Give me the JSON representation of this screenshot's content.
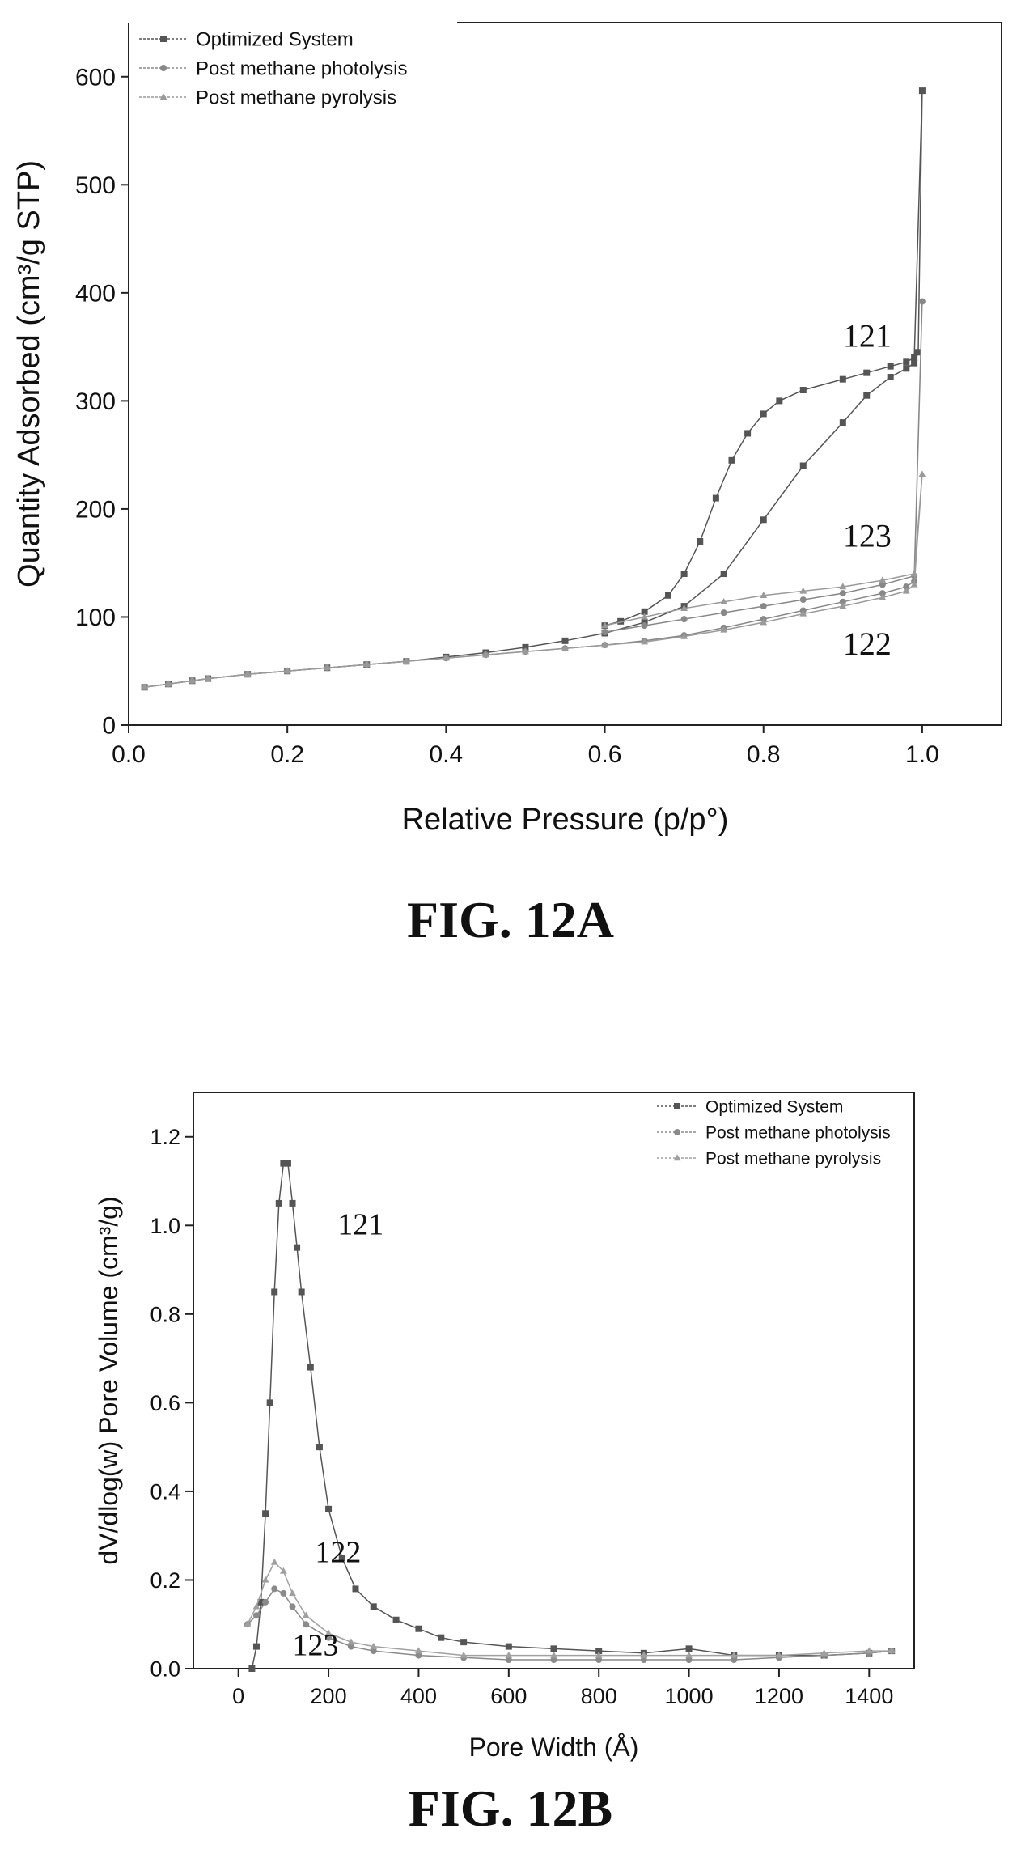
{
  "chart_data": [
    {
      "type": "line",
      "caption": "FIG. 12A",
      "xlabel": "Relative Pressure (p/p°)",
      "ylabel": "Quantity Adsorbed (cm³/g STP)",
      "xlim": [
        0.0,
        1.1
      ],
      "ylim": [
        0,
        650
      ],
      "xticks": [
        0.0,
        0.2,
        0.4,
        0.6,
        0.8,
        1.0
      ],
      "xtick_labels": [
        "0.0",
        "0.2",
        "0.4",
        "0.6",
        "0.8",
        "1.0"
      ],
      "yticks": [
        0,
        100,
        200,
        300,
        400,
        500,
        600
      ],
      "ytick_labels": [
        "0",
        "100",
        "200",
        "300",
        "400",
        "500",
        "600"
      ],
      "legend": "top-left",
      "series": [
        {
          "name": "Optimized System",
          "marker": "square",
          "color": "#555555",
          "x": [
            0.02,
            0.05,
            0.08,
            0.1,
            0.15,
            0.2,
            0.25,
            0.3,
            0.35,
            0.4,
            0.45,
            0.5,
            0.55,
            0.6,
            0.65,
            0.7,
            0.75,
            0.8,
            0.85,
            0.9,
            0.93,
            0.96,
            0.98,
            0.99,
            0.995,
            1.0,
            0.99,
            0.98,
            0.96,
            0.93,
            0.9,
            0.85,
            0.82,
            0.8,
            0.78,
            0.76,
            0.74,
            0.72,
            0.7,
            0.68,
            0.65,
            0.62,
            0.6
          ],
          "y": [
            35,
            38,
            41,
            43,
            47,
            50,
            53,
            56,
            59,
            63,
            67,
            72,
            78,
            85,
            95,
            110,
            140,
            190,
            240,
            280,
            305,
            322,
            330,
            335,
            345,
            587,
            340,
            336,
            332,
            326,
            320,
            310,
            300,
            288,
            270,
            245,
            210,
            170,
            140,
            120,
            105,
            96,
            92
          ]
        },
        {
          "name": "Post methane photolysis",
          "marker": "circle",
          "color": "#888888",
          "x": [
            0.02,
            0.05,
            0.08,
            0.1,
            0.15,
            0.2,
            0.25,
            0.3,
            0.35,
            0.4,
            0.45,
            0.5,
            0.55,
            0.6,
            0.65,
            0.7,
            0.75,
            0.8,
            0.85,
            0.9,
            0.95,
            0.98,
            0.99,
            1.0,
            0.99,
            0.95,
            0.9,
            0.85,
            0.8,
            0.75,
            0.7,
            0.65,
            0.6
          ],
          "y": [
            35,
            38,
            41,
            43,
            47,
            50,
            53,
            56,
            59,
            62,
            65,
            68,
            71,
            74,
            78,
            83,
            90,
            98,
            106,
            114,
            122,
            128,
            133,
            392,
            138,
            130,
            122,
            116,
            110,
            104,
            98,
            92,
            86
          ]
        },
        {
          "name": "Post methane pyrolysis",
          "marker": "triangle",
          "color": "#9a9a9a",
          "x": [
            0.02,
            0.05,
            0.08,
            0.1,
            0.15,
            0.2,
            0.25,
            0.3,
            0.35,
            0.4,
            0.45,
            0.5,
            0.55,
            0.6,
            0.65,
            0.7,
            0.75,
            0.8,
            0.85,
            0.9,
            0.95,
            0.98,
            0.99,
            1.0,
            0.99,
            0.95,
            0.9,
            0.85,
            0.8,
            0.75,
            0.7,
            0.65,
            0.6
          ],
          "y": [
            35,
            38,
            41,
            43,
            47,
            50,
            53,
            56,
            59,
            62,
            65,
            68,
            71,
            74,
            77,
            82,
            88,
            95,
            103,
            110,
            118,
            124,
            130,
            232,
            140,
            134,
            128,
            124,
            120,
            114,
            108,
            100,
            92
          ]
        }
      ],
      "annotations": [
        {
          "text": "121",
          "x": 0.9,
          "y": 350
        },
        {
          "text": "123",
          "x": 0.9,
          "y": 165
        },
        {
          "text": "122",
          "x": 0.9,
          "y": 65
        }
      ]
    },
    {
      "type": "line",
      "caption": "FIG. 12B",
      "xlabel": "Pore Width (Å)",
      "ylabel": "dV/dlog(w) Pore Volume (cm³/g)",
      "xlim": [
        -100,
        1500
      ],
      "ylim": [
        0.0,
        1.3
      ],
      "xticks": [
        0,
        200,
        400,
        600,
        800,
        1000,
        1200,
        1400
      ],
      "xtick_labels": [
        "0",
        "200",
        "400",
        "600",
        "800",
        "1000",
        "1200",
        "1400"
      ],
      "yticks": [
        0.0,
        0.2,
        0.4,
        0.6,
        0.8,
        1.0,
        1.2
      ],
      "ytick_labels": [
        "0.0",
        "0.2",
        "0.4",
        "0.6",
        "0.8",
        "1.0",
        "1.2"
      ],
      "legend": "top-right",
      "series": [
        {
          "name": "Optimized System",
          "marker": "square",
          "color": "#555555",
          "x": [
            30,
            40,
            50,
            60,
            70,
            80,
            90,
            100,
            110,
            120,
            130,
            140,
            160,
            180,
            200,
            230,
            260,
            300,
            350,
            400,
            450,
            500,
            600,
            700,
            800,
            900,
            1000,
            1100,
            1200,
            1300,
            1400,
            1450
          ],
          "y": [
            0.0,
            0.05,
            0.15,
            0.35,
            0.6,
            0.85,
            1.05,
            1.14,
            1.14,
            1.05,
            0.95,
            0.85,
            0.68,
            0.5,
            0.36,
            0.25,
            0.18,
            0.14,
            0.11,
            0.09,
            0.07,
            0.06,
            0.05,
            0.045,
            0.04,
            0.035,
            0.045,
            0.03,
            0.03,
            0.03,
            0.035,
            0.04
          ]
        },
        {
          "name": "Post methane photolysis",
          "marker": "circle",
          "color": "#8a8a8a",
          "x": [
            20,
            40,
            60,
            80,
            100,
            120,
            150,
            200,
            250,
            300,
            400,
            500,
            600,
            700,
            800,
            900,
            1000,
            1100,
            1200,
            1300,
            1400,
            1450
          ],
          "y": [
            0.1,
            0.12,
            0.15,
            0.18,
            0.17,
            0.14,
            0.1,
            0.07,
            0.05,
            0.04,
            0.03,
            0.025,
            0.02,
            0.02,
            0.02,
            0.02,
            0.02,
            0.02,
            0.025,
            0.03,
            0.035,
            0.04
          ]
        },
        {
          "name": "Post methane pyrolysis",
          "marker": "triangle",
          "color": "#a0a0a0",
          "x": [
            20,
            40,
            60,
            80,
            100,
            120,
            150,
            200,
            250,
            300,
            400,
            500,
            600,
            700,
            800,
            900,
            1000,
            1100,
            1200,
            1300,
            1400,
            1450
          ],
          "y": [
            0.1,
            0.14,
            0.2,
            0.24,
            0.22,
            0.17,
            0.12,
            0.08,
            0.06,
            0.05,
            0.04,
            0.03,
            0.03,
            0.03,
            0.03,
            0.03,
            0.03,
            0.03,
            0.03,
            0.035,
            0.04,
            0.04
          ]
        }
      ],
      "annotations": [
        {
          "text": "121",
          "x": 220,
          "y": 0.98
        },
        {
          "text": "122",
          "x": 170,
          "y": 0.24
        },
        {
          "text": "123",
          "x": 120,
          "y": 0.03
        }
      ]
    }
  ]
}
